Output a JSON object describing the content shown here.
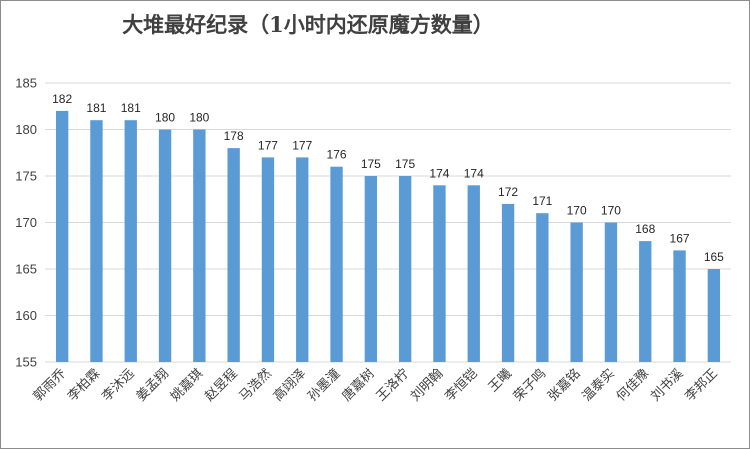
{
  "chart_data": {
    "type": "bar",
    "title": "大堆最好纪录（1小时内还原魔方数量）",
    "xlabel": "",
    "ylabel": "",
    "ylim": [
      155,
      185
    ],
    "yticks": [
      155,
      160,
      165,
      170,
      175,
      180,
      185
    ],
    "grid": true,
    "bar_color": "#5b9bd5",
    "categories": [
      "郭雨乔",
      "李柏霖",
      "李沐远",
      "姜孟翔",
      "姚嘉琪",
      "赵昱程",
      "马浩然",
      "高翊泽",
      "孙墨潼",
      "唐嘉树",
      "王洛柠",
      "刘明翰",
      "李恒铠",
      "王曦",
      "荣子鸣",
      "张嘉铭",
      "温泰实",
      "何佳豫",
      "刘书溪",
      "李邦正"
    ],
    "values": [
      182,
      181,
      181,
      180,
      180,
      178,
      177,
      177,
      176,
      175,
      175,
      174,
      174,
      172,
      171,
      170,
      170,
      168,
      167,
      165
    ]
  }
}
